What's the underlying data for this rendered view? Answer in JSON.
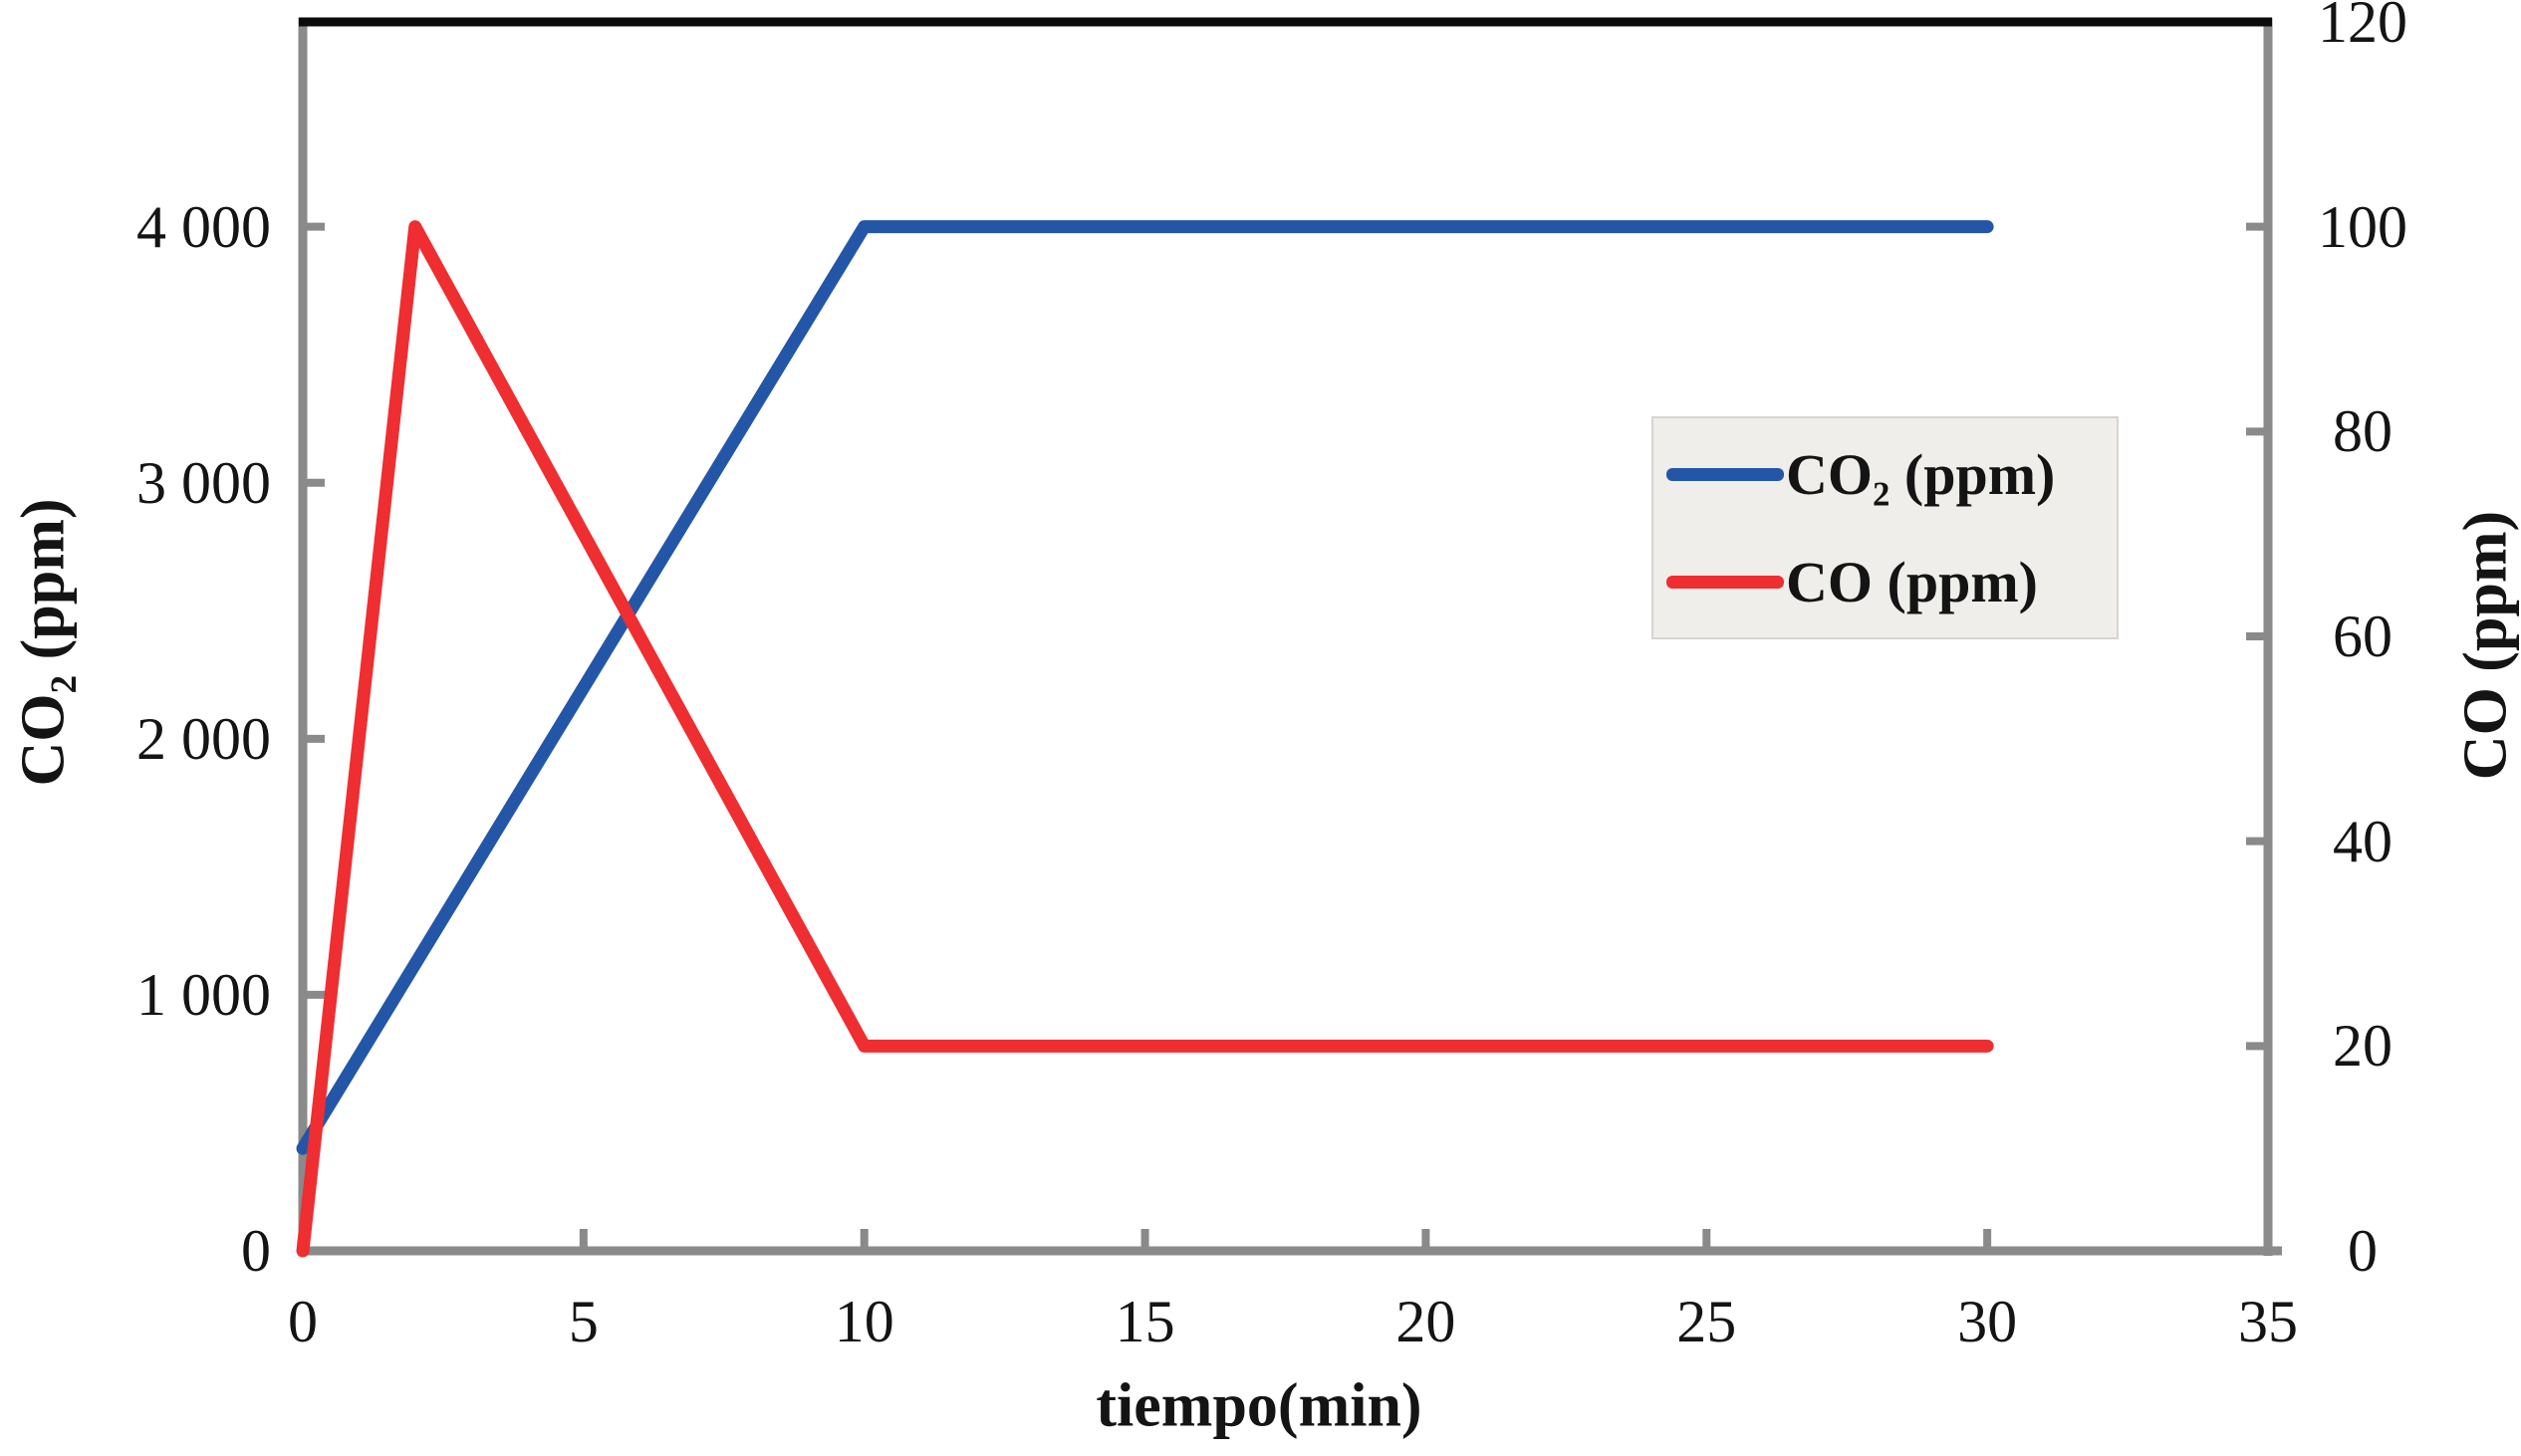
{
  "chart_data": {
    "type": "line",
    "title": "",
    "xlabel": "tiempo(min)",
    "ylabel_left": "CO₂ (ppm)",
    "ylabel_right": "CO (ppm)",
    "x_axis": {
      "min": 0,
      "max": 35,
      "ticks": [
        0,
        5,
        10,
        15,
        20,
        25,
        30,
        35
      ],
      "tick_labels": [
        "0",
        "5",
        "10",
        "15",
        "20",
        "25",
        "30",
        "35"
      ]
    },
    "y_left_axis": {
      "min": 0,
      "max": 4800,
      "ticks": [
        0,
        1000,
        2000,
        3000,
        4000
      ],
      "tick_labels": [
        "0",
        "1 000",
        "2 000",
        "3 000",
        "4 000"
      ]
    },
    "y_right_axis": {
      "min": 0,
      "max": 120,
      "ticks": [
        0,
        20,
        40,
        60,
        80,
        100,
        120
      ],
      "tick_labels": [
        "0",
        "20",
        "40",
        "60",
        "80",
        "100",
        "120"
      ]
    },
    "grid": false,
    "legend_position": "center-right",
    "series": [
      {
        "name": "CO₂ (ppm)",
        "axis": "left",
        "color": "#2456A8",
        "points": [
          [
            0,
            400
          ],
          [
            10,
            4000
          ],
          [
            30,
            4000
          ]
        ]
      },
      {
        "name": "CO (ppm)",
        "axis": "right",
        "color": "#EE2E31",
        "points": [
          [
            0,
            0
          ],
          [
            2,
            100
          ],
          [
            10,
            20
          ],
          [
            30,
            20
          ]
        ]
      }
    ]
  },
  "colors": {
    "axis": "#8A8A8A",
    "plot_top_border": "#0B0B0B",
    "legend_bg": "#EFEEEA",
    "legend_border": "#D6D5D0",
    "text": "#141414"
  }
}
